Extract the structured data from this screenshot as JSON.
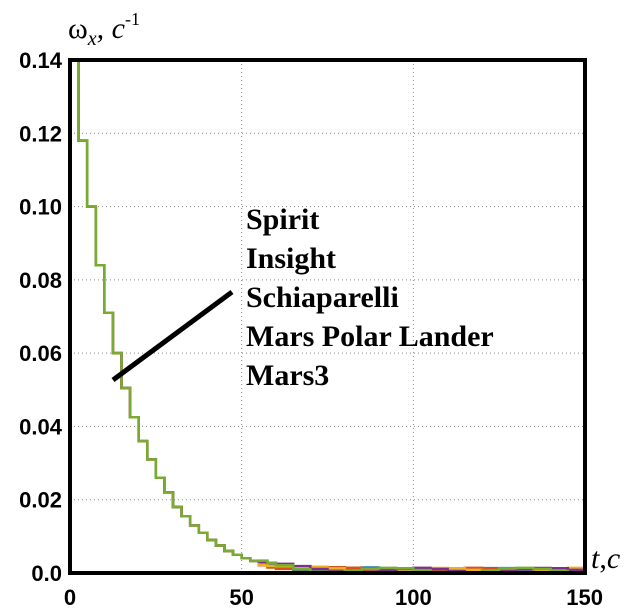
{
  "chart_data": {
    "type": "line",
    "title": "",
    "ylabel": {
      "base": "ω",
      "sub": "x",
      "sep": ", ",
      "unit": "c",
      "sup": "-1"
    },
    "xlabel": {
      "var": "t",
      "sep": ",",
      "unit": "c"
    },
    "xlim": [
      0,
      150
    ],
    "ylim": [
      0,
      0.14
    ],
    "xticks": [
      0,
      50,
      100,
      150
    ],
    "xtick_labels": [
      "0",
      "50",
      "100",
      "150"
    ],
    "yticks": [
      0,
      0.02,
      0.04,
      0.06,
      0.08,
      0.1,
      0.12,
      0.14
    ],
    "ytick_labels": [
      "0.0",
      "0.02",
      "0.04",
      "0.06",
      "0.08",
      "0.10",
      "0.12",
      "0.14"
    ],
    "grid": "dotted",
    "annotation_labels": [
      "Spirit",
      "Insight",
      "Schiaparelli",
      "Mars Polar Lander",
      "Mars3"
    ],
    "series": [
      {
        "color": "#1f77b4",
        "phase": 0.0
      },
      {
        "color": "#d95319",
        "phase": 1.3
      },
      {
        "color": "#edb120",
        "phase": 2.6
      },
      {
        "color": "#7e2f8e",
        "phase": 3.9
      },
      {
        "color": "#77ac30",
        "phase": 5.2
      }
    ],
    "x": [
      0,
      2.5,
      5,
      7.5,
      10,
      12.5,
      15,
      17.5,
      20,
      22.5,
      25,
      27.5,
      30,
      32.5,
      35,
      37.5,
      40,
      42.5,
      45,
      47.5,
      50,
      52.5,
      55,
      57.5,
      60,
      65,
      70,
      75,
      80,
      85,
      90,
      95,
      100,
      105,
      110,
      115,
      120,
      125,
      130,
      135,
      140,
      145,
      150
    ],
    "y": [
      0.14,
      0.118,
      0.1,
      0.084,
      0.071,
      0.06,
      0.0505,
      0.0425,
      0.036,
      0.031,
      0.026,
      0.022,
      0.018,
      0.0155,
      0.013,
      0.011,
      0.009,
      0.0075,
      0.006,
      0.005,
      0.004,
      0.0033,
      0.0027,
      0.0022,
      0.0018,
      0.0013,
      0.001,
      0.0009,
      0.0008,
      0.0008,
      0.0007,
      0.0007,
      0.0007,
      0.0007,
      0.0007,
      0.0007,
      0.0007,
      0.0007,
      0.0007,
      0.0007,
      0.0007,
      0.0007,
      0.0007
    ]
  }
}
